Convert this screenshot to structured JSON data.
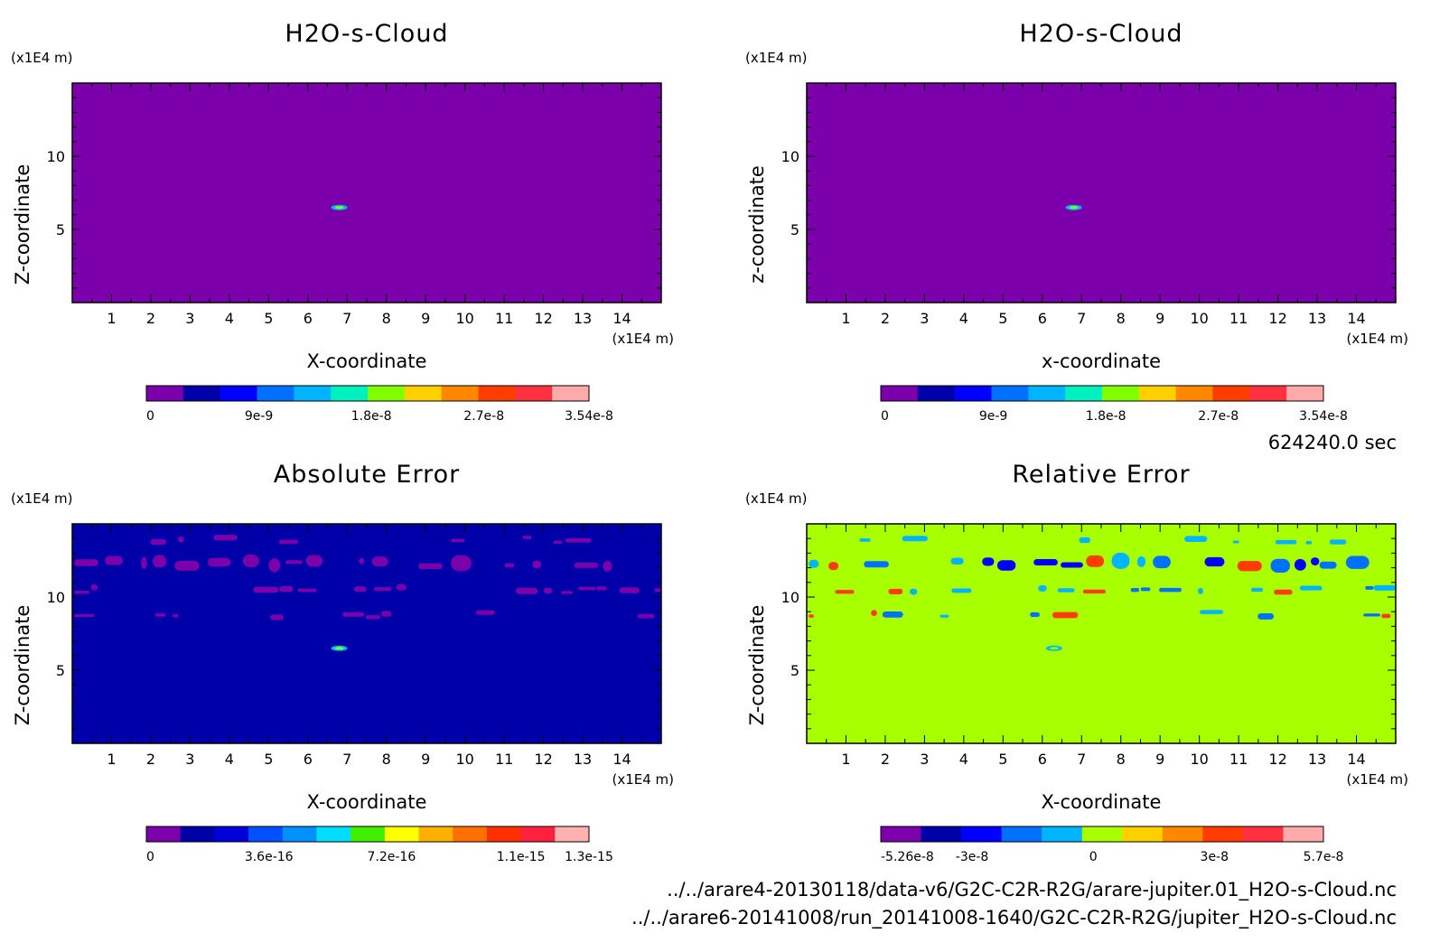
{
  "figure": {
    "time_label": "624240.0 sec",
    "file_1": "../../arare4-20130118/data-v6/G2C-C2R-R2G/arare-jupiter.01_H2O-s-Cloud.nc",
    "file_2": "../../arare6-20141008/run_20141008-1640/G2C-C2R-R2G/jupiter_H2O-s-Cloud.nc"
  },
  "chart_data": [
    {
      "type": "heatmap",
      "title": "H2O-s-Cloud",
      "xlabel": "X-coordinate",
      "ylabel": "Z-coordinate",
      "x_unit": "(x1E4 m)",
      "y_unit": "(x1E4 m)",
      "xlim": [
        0,
        15
      ],
      "ylim": [
        0,
        15
      ],
      "xticks": [
        1,
        2,
        3,
        4,
        5,
        6,
        7,
        8,
        9,
        10,
        11,
        12,
        13,
        14
      ],
      "yticks": [
        5,
        10
      ],
      "field_color": "#7b00ab",
      "features": [
        {
          "x": 6.8,
          "z": 6.5,
          "kind": "small cloud blob"
        }
      ],
      "colorbar": {
        "colors": [
          "#7b00ab",
          "#0000a8",
          "#0000ff",
          "#0070ff",
          "#00b4ff",
          "#00f0c0",
          "#80ff00",
          "#ffd000",
          "#ff8800",
          "#ff3c00",
          "#ff3040",
          "#ffaaaa"
        ],
        "tick_values": [
          0,
          9e-09,
          1.8e-08,
          2.7e-08,
          3.54e-08
        ],
        "tick_labels": [
          "0",
          "9e-9",
          "1.8e-8",
          "2.7e-8",
          "3.54e-8"
        ],
        "range": [
          0,
          3.54e-08
        ]
      }
    },
    {
      "type": "heatmap",
      "title": "H2O-s-Cloud",
      "xlabel": "x-coordinate",
      "ylabel": "z-coordinate",
      "x_unit": "(x1E4 m)",
      "y_unit": "(x1E4 m)",
      "xlim": [
        0,
        15
      ],
      "ylim": [
        0,
        15
      ],
      "xticks": [
        1,
        2,
        3,
        4,
        5,
        6,
        7,
        8,
        9,
        10,
        11,
        12,
        13,
        14
      ],
      "yticks": [
        5,
        10
      ],
      "field_color": "#7b00ab",
      "features": [
        {
          "x": 6.8,
          "z": 6.5,
          "kind": "small cloud blob"
        }
      ],
      "colorbar": {
        "colors": [
          "#7b00ab",
          "#0000a8",
          "#0000ff",
          "#0070ff",
          "#00b4ff",
          "#00f0c0",
          "#80ff00",
          "#ffd000",
          "#ff8800",
          "#ff3c00",
          "#ff3040",
          "#ffaaaa"
        ],
        "tick_values": [
          0,
          9e-09,
          1.8e-08,
          2.7e-08,
          3.54e-08
        ],
        "tick_labels": [
          "0",
          "9e-9",
          "1.8e-8",
          "2.7e-8",
          "3.54e-8"
        ],
        "range": [
          0,
          3.54e-08
        ]
      }
    },
    {
      "type": "heatmap",
      "title": "Absolute Error",
      "xlabel": "X-coordinate",
      "ylabel": "Z-coordinate",
      "x_unit": "(x1E4 m)",
      "y_unit": "(x1E4 m)",
      "xlim": [
        0,
        15
      ],
      "ylim": [
        0,
        15
      ],
      "xticks": [
        1,
        2,
        3,
        4,
        5,
        6,
        7,
        8,
        9,
        10,
        11,
        12,
        13,
        14
      ],
      "yticks": [
        5,
        10
      ],
      "field_color": "#0000a8",
      "bands": [
        {
          "z": 13.9,
          "density": 0.25,
          "colors": [
            "#7b00ab"
          ]
        },
        {
          "z": 12.3,
          "density": 0.75,
          "colors": [
            "#7b00ab"
          ]
        },
        {
          "z": 10.5,
          "density": 0.5,
          "colors": [
            "#7b00ab"
          ]
        },
        {
          "z": 8.8,
          "density": 0.35,
          "colors": [
            "#7b00ab"
          ]
        }
      ],
      "features": [
        {
          "x": 6.8,
          "z": 6.5,
          "kind": "small error blob"
        }
      ],
      "colorbar": {
        "colors": [
          "#7b00ab",
          "#0000a8",
          "#0000d8",
          "#0050ff",
          "#0090ff",
          "#00ddff",
          "#40f000",
          "#ffff00",
          "#ffb000",
          "#ff7000",
          "#ff3000",
          "#ff2040",
          "#ffb0b0"
        ],
        "tick_values": [
          0,
          3.6e-16,
          7.2e-16,
          1.1e-15,
          1.3e-15
        ],
        "tick_labels": [
          "0",
          "3.6e-16",
          "7.2e-16",
          "1.1e-15",
          "1.3e-15"
        ],
        "range": [
          0,
          1.3e-15
        ]
      }
    },
    {
      "type": "heatmap",
      "title": "Relative Error",
      "xlabel": "X-coordinate",
      "ylabel": "Z-coordinate",
      "x_unit": "(x1E4 m)",
      "y_unit": "(x1E4 m)",
      "xlim": [
        0,
        15
      ],
      "ylim": [
        0,
        15
      ],
      "xticks": [
        1,
        2,
        3,
        4,
        5,
        6,
        7,
        8,
        9,
        10,
        11,
        12,
        13,
        14
      ],
      "yticks": [
        5,
        10
      ],
      "field_color": "#a8ff00",
      "bands": [
        {
          "z": 13.9,
          "density": 0.35,
          "colors": [
            "#00b4ff"
          ]
        },
        {
          "z": 12.3,
          "density": 0.8,
          "colors": [
            "#0070ff",
            "#00b4ff",
            "#ff3c00",
            "#0000ff"
          ]
        },
        {
          "z": 10.5,
          "density": 0.55,
          "colors": [
            "#00b4ff",
            "#0070ff",
            "#ff3c00"
          ]
        },
        {
          "z": 8.8,
          "density": 0.45,
          "colors": [
            "#0070ff",
            "#ff3c00",
            "#00b4ff"
          ]
        }
      ],
      "features": [
        {
          "x": 6.3,
          "z": 6.5,
          "kind": "small error streak"
        }
      ],
      "colorbar": {
        "colors": [
          "#7b00ab",
          "#0000a8",
          "#0000ff",
          "#0070ff",
          "#00b4ff",
          "#a8ff00",
          "#ffd000",
          "#ff8800",
          "#ff3c00",
          "#ff3040",
          "#ffaaaa"
        ],
        "tick_values": [
          -5.26e-08,
          -3e-08,
          0,
          3e-08,
          5.7e-08
        ],
        "tick_labels": [
          "-5.26e-8",
          "-3e-8",
          "0",
          "3e-8",
          "5.7e-8"
        ],
        "range": [
          -5.26e-08,
          5.7e-08
        ]
      }
    }
  ]
}
